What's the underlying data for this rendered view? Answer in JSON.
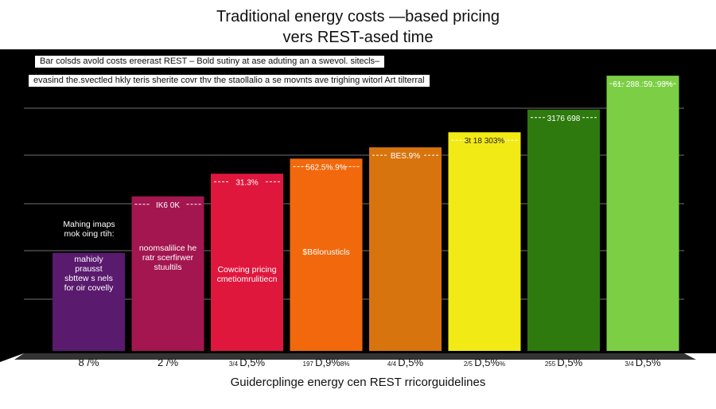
{
  "chart_data": {
    "type": "bar",
    "title": [
      "Traditional energy costs —based pricing",
      "vers REST-ased time"
    ],
    "notes": [
      "Bar colsds avold costs ereerast REST – Bold sutiny at ase aduting an a swevol. sitecls–",
      "evasind the.svectled hkly teris sherite covr thv the staollalio a se movnts ave trighing witorl Art tilterral"
    ],
    "categories": [
      "8 /%",
      "2 /%",
      "D,5%",
      "D,9%",
      "D,5%",
      "D,5%",
      "D,5%",
      "D,5%"
    ],
    "category_prefixes": [
      "",
      "",
      "3/4",
      "197",
      "4/4",
      "2/5",
      "255",
      "3/4"
    ],
    "category_suffixes": [
      "",
      "",
      "",
      "8%",
      "",
      "%",
      "",
      ""
    ],
    "values": [
      130,
      205,
      235,
      255,
      270,
      290,
      320,
      365
    ],
    "value_labels": [
      "",
      "IK6 0K",
      "31.3%",
      "562.5%.9%",
      "BES.9%",
      "3t 18 303%",
      "3176 698",
      "61. 288.:59.:93%"
    ],
    "bar_texts": [
      [
        "mahioly",
        "prausst",
        "sbttew s nels",
        "for oir covelly"
      ],
      [
        "noomsalilice he",
        "ratr scerfirwer",
        "stuultils"
      ],
      [
        "Cowcing pricing",
        "cmetiomrulitiecn"
      ],
      [
        "$B6lorusticls"
      ],
      [],
      [],
      [],
      []
    ],
    "left_label": [
      "Mahing imaps",
      "mok oing rtih:"
    ],
    "colors": [
      "#5a1a6e",
      "#a3164f",
      "#e0173d",
      "#f2680c",
      "#d8740e",
      "#f2ea14",
      "#2e7a0e",
      "#7ccf44"
    ],
    "footer": "Guidercplinge energy cen REST rricorguidelines",
    "ylim": [
      0,
      400
    ],
    "grid": true
  }
}
